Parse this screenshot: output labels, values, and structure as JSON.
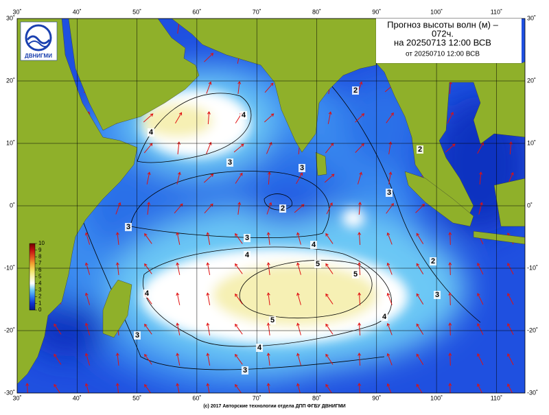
{
  "header": {
    "title_lines": [
      "Прогноз высоты волн (м) –",
      "072ч.",
      "на 20250713 12:00 ВСВ",
      "от 20250710 12:00 ВСВ"
    ]
  },
  "logo_text": "ДВНИГМИ",
  "footer": "(c) 2017 Авторские технологии отдела ДПП ФГБУ ДВНИГМИ",
  "axes": {
    "xticks": [
      {
        "value": 30,
        "label": "30˚"
      },
      {
        "value": 40,
        "label": "40˚"
      },
      {
        "value": 50,
        "label": "50˚"
      },
      {
        "value": 60,
        "label": "60˚"
      },
      {
        "value": 70,
        "label": "70˚"
      },
      {
        "value": 80,
        "label": "80˚"
      },
      {
        "value": 90,
        "label": "90˚"
      },
      {
        "value": 100,
        "label": "100˚"
      },
      {
        "value": 110,
        "label": "110˚"
      }
    ],
    "yticks": [
      {
        "value": 30,
        "label": "30˚"
      },
      {
        "value": 20,
        "label": "20˚"
      },
      {
        "value": 10,
        "label": "10˚"
      },
      {
        "value": 0,
        "label": "0˚"
      },
      {
        "value": -10,
        "label": "-10˚"
      },
      {
        "value": -20,
        "label": "-20˚"
      },
      {
        "value": -30,
        "label": "-30˚"
      }
    ]
  },
  "colorbar": {
    "ticks": [
      0,
      1,
      2,
      3,
      4,
      5,
      6,
      7,
      8,
      9,
      10
    ]
  },
  "contour_labels": [
    "4",
    "4",
    "3",
    "3",
    "2",
    "3",
    "3",
    "4",
    "4",
    "5",
    "5",
    "4",
    "5",
    "4",
    "4",
    "3",
    "3",
    "2",
    "2",
    "3",
    "2",
    "3"
  ]
}
